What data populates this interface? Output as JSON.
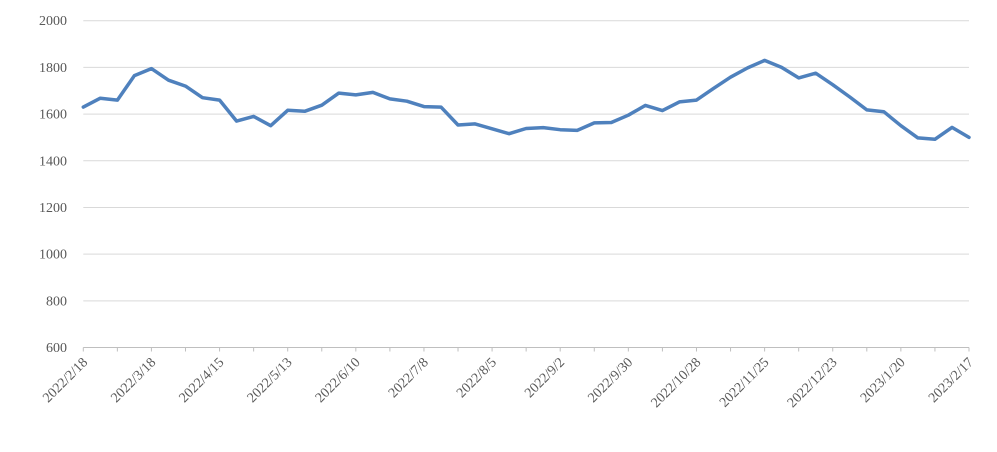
{
  "chart_data": {
    "type": "line",
    "title": "",
    "xlabel": "",
    "ylabel": "",
    "x": [
      "2022/2/18",
      "2022/2/25",
      "2022/3/4",
      "2022/3/11",
      "2022/3/18",
      "2022/3/25",
      "2022/4/1",
      "2022/4/8",
      "2022/4/15",
      "2022/4/22",
      "2022/4/29",
      "2022/5/6",
      "2022/5/13",
      "2022/5/20",
      "2022/5/27",
      "2022/6/3",
      "2022/6/10",
      "2022/6/17",
      "2022/6/24",
      "2022/7/1",
      "2022/7/8",
      "2022/7/15",
      "2022/7/22",
      "2022/7/29",
      "2022/8/5",
      "2022/8/12",
      "2022/8/19",
      "2022/8/26",
      "2022/9/2",
      "2022/9/9",
      "2022/9/16",
      "2022/9/23",
      "2022/9/30",
      "2022/10/7",
      "2022/10/14",
      "2022/10/21",
      "2022/10/28",
      "2022/11/4",
      "2022/11/11",
      "2022/11/18",
      "2022/11/25",
      "2022/12/2",
      "2022/12/9",
      "2022/12/16",
      "2022/12/23",
      "2022/12/30",
      "2023/1/6",
      "2023/1/13",
      "2023/1/20",
      "2023/1/27",
      "2023/2/3",
      "2023/2/10",
      "2023/2/17"
    ],
    "series": [
      {
        "name": "",
        "values": [
          1630,
          1668,
          1660,
          1765,
          1795,
          1745,
          1720,
          1670,
          1660,
          1570,
          1590,
          1550,
          1616,
          1612,
          1638,
          1690,
          1682,
          1693,
          1665,
          1655,
          1632,
          1630,
          1553,
          1558,
          1537,
          1516,
          1538,
          1542,
          1533,
          1530,
          1562,
          1564,
          1595,
          1637,
          1615,
          1652,
          1660,
          1710,
          1758,
          1798,
          1830,
          1800,
          1755,
          1775,
          1726,
          1673,
          1618,
          1610,
          1550,
          1498,
          1492,
          1543,
          1500
        ]
      }
    ],
    "x_axis_labels": [
      "2022/2/18",
      "2022/3/18",
      "2022/4/15",
      "2022/5/13",
      "2022/6/10",
      "2022/7/8",
      "2022/8/5",
      "2022/9/2",
      "2022/9/30",
      "2022/10/28",
      "2022/11/25",
      "2022/12/23",
      "2023/1/20",
      "2023/2/17"
    ],
    "x_label_every_n_points": 4,
    "x_tick_every_n_points": 2,
    "yticks": [
      600,
      800,
      1000,
      1200,
      1400,
      1600,
      1800,
      2000
    ],
    "ylim": [
      600,
      2000
    ],
    "grid": true,
    "legend_position": "none",
    "colors": {
      "line": "#4F81BD",
      "gridline": "#D9D9D9",
      "axis_line": "#BFBFBF",
      "tick_label_text": "#595959"
    }
  }
}
